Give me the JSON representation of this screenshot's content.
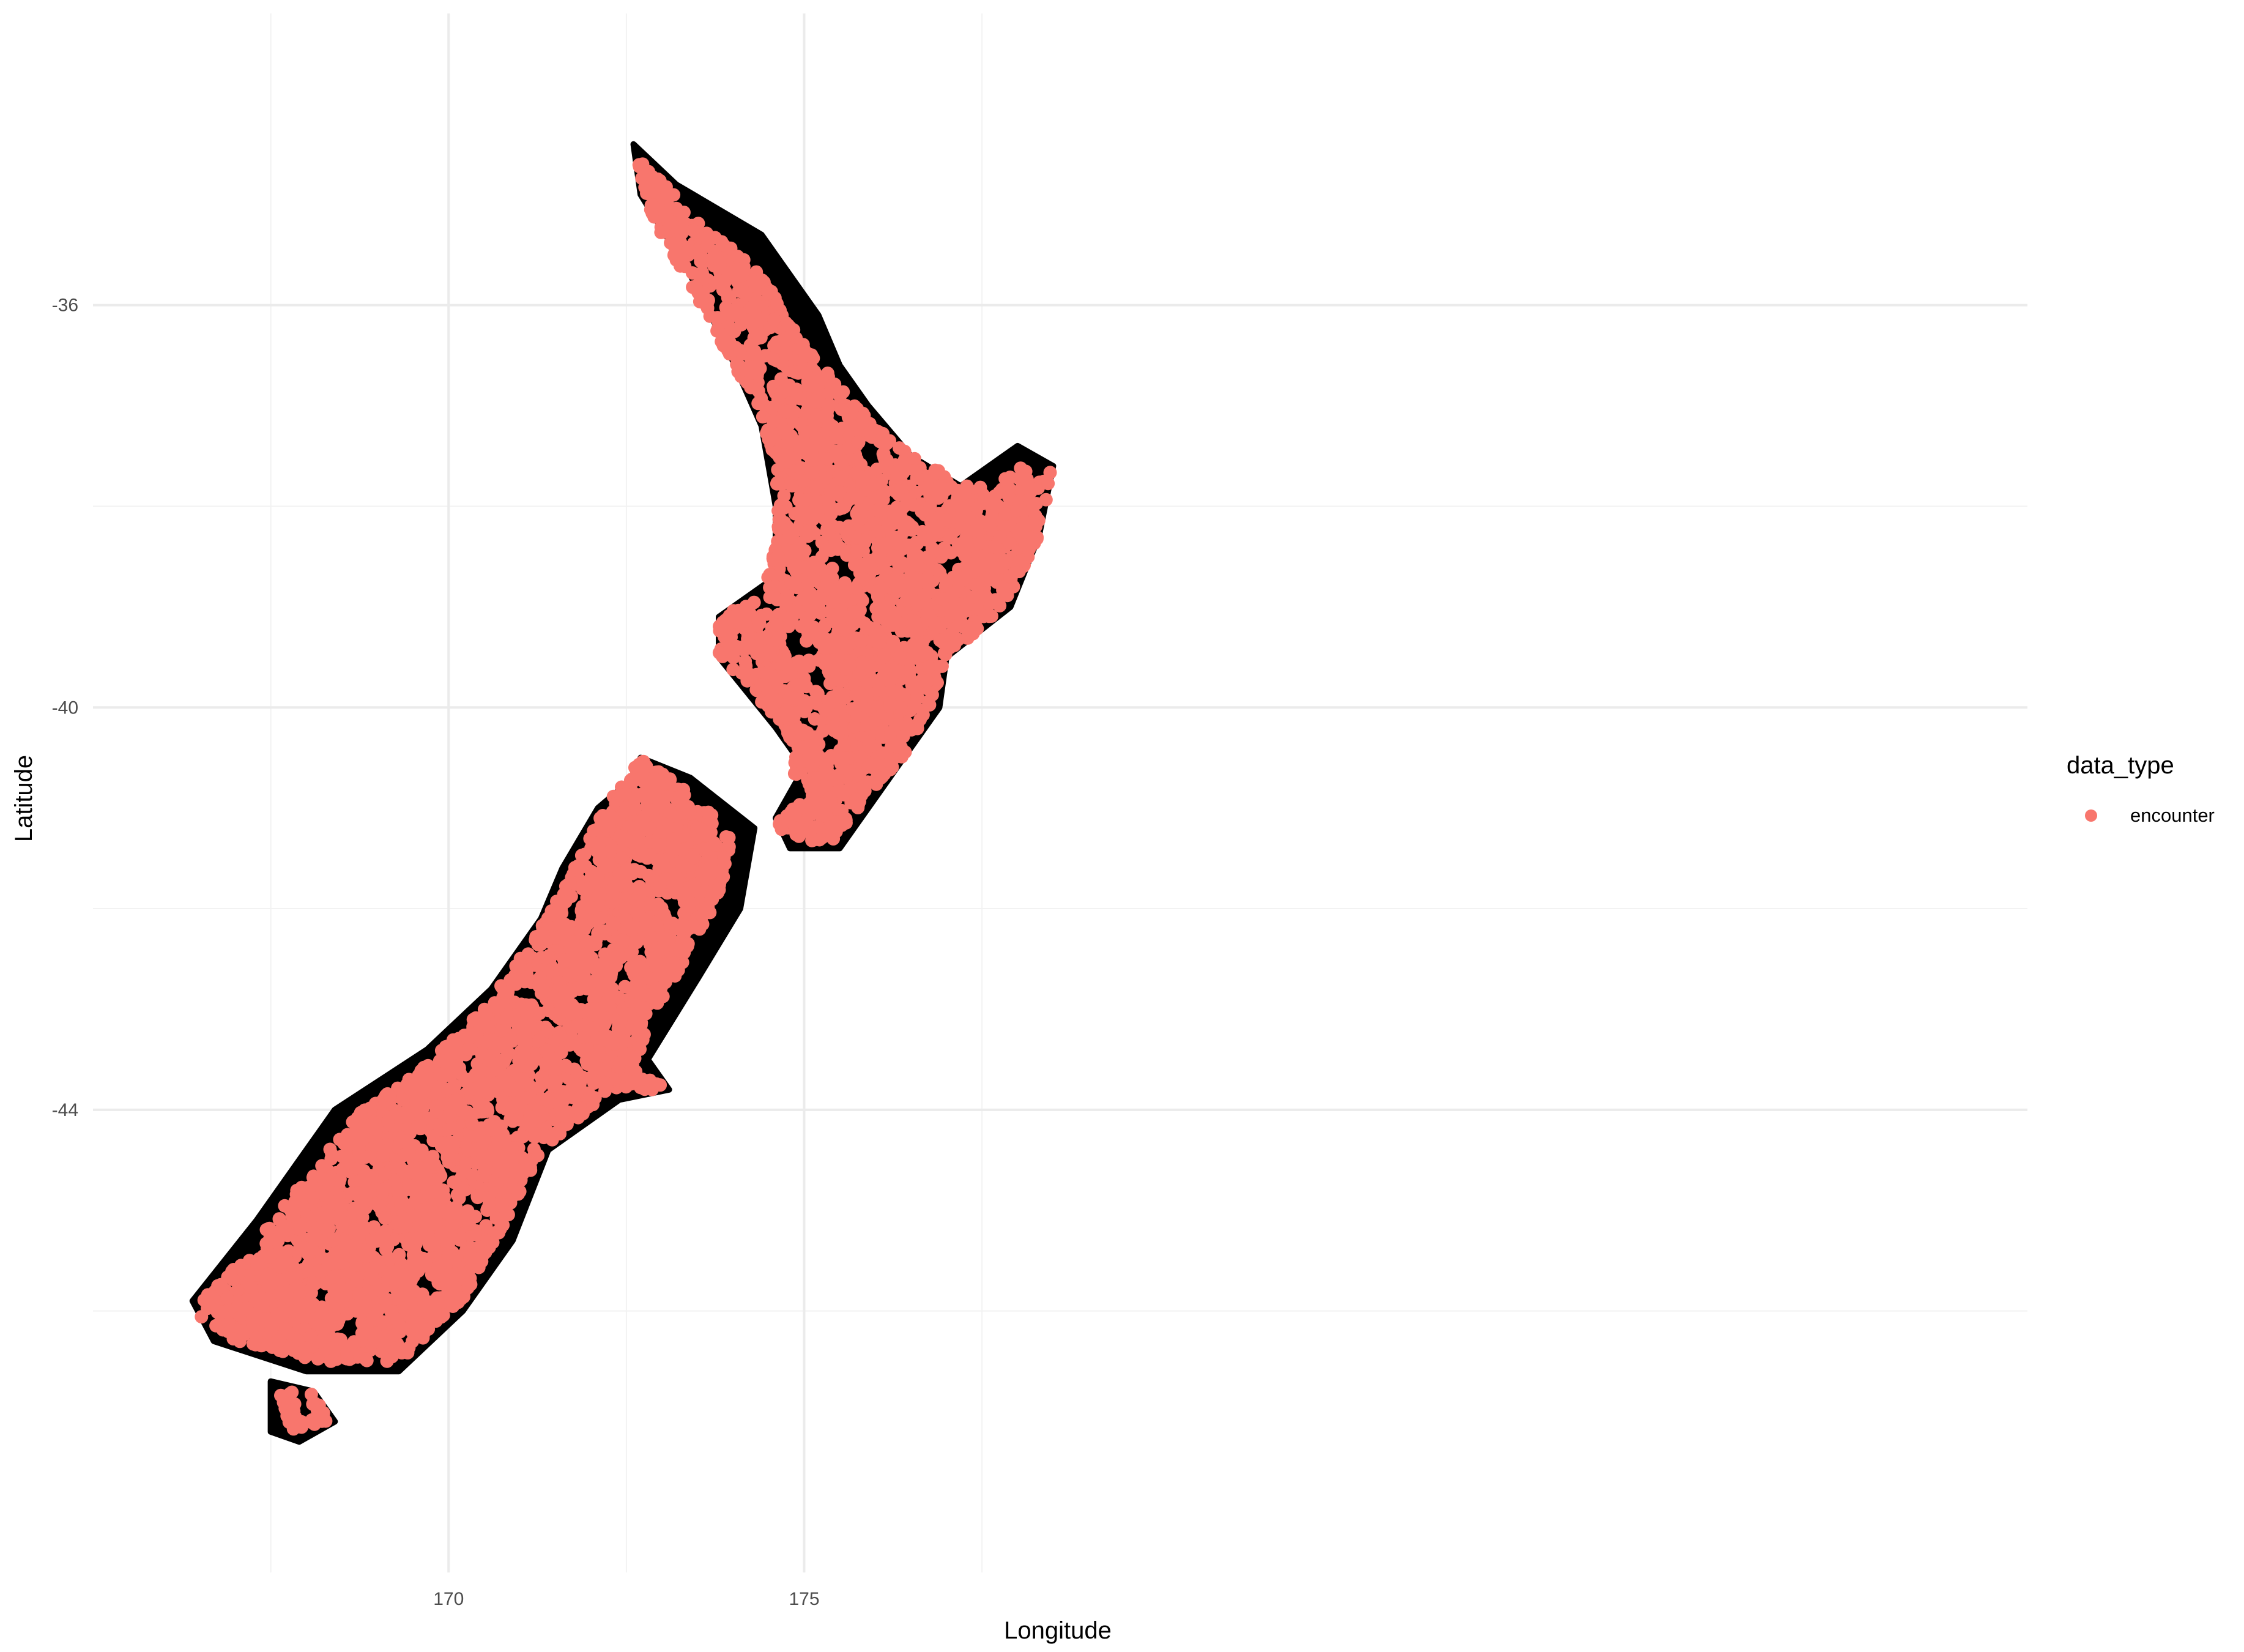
{
  "chart_data": {
    "type": "scatter",
    "title": "",
    "xlabel": "Longitude",
    "ylabel": "Latitude",
    "xlim": [
      165.0,
      192.2
    ],
    "ylim": [
      -48.6,
      -33.1
    ],
    "x_ticks": [
      170,
      175
    ],
    "y_ticks": [
      -36,
      -40,
      -44
    ],
    "x_tick_labels": [
      "170",
      "175"
    ],
    "y_tick_labels": [
      "-36",
      "-40",
      "-44"
    ],
    "x_minor_gridlines": [
      167.5,
      172.5,
      177.5
    ],
    "y_minor_gridlines": [
      -38,
      -42,
      -46
    ],
    "grid": true,
    "theme": "minimal",
    "legend": {
      "title": "data_type",
      "placement": "right",
      "entries": [
        {
          "name": "encounter",
          "color": "#F8766D"
        }
      ]
    },
    "background_layer": {
      "color": "#000000",
      "regions": {
        "north_island": [
          [
            172.6,
            -34.4
          ],
          [
            173.2,
            -34.8
          ],
          [
            174.4,
            -35.3
          ],
          [
            175.2,
            -36.1
          ],
          [
            175.5,
            -36.6
          ],
          [
            175.9,
            -37.0
          ],
          [
            176.5,
            -37.5
          ],
          [
            177.2,
            -37.8
          ],
          [
            178.0,
            -37.4
          ],
          [
            178.5,
            -37.6
          ],
          [
            178.3,
            -38.3
          ],
          [
            177.9,
            -39.0
          ],
          [
            177.0,
            -39.5
          ],
          [
            176.9,
            -40.0
          ],
          [
            176.2,
            -40.7
          ],
          [
            175.5,
            -41.4
          ],
          [
            174.8,
            -41.4
          ],
          [
            174.6,
            -41.1
          ],
          [
            175.0,
            -40.6
          ],
          [
            174.6,
            -40.2
          ],
          [
            173.8,
            -39.5
          ],
          [
            173.8,
            -39.1
          ],
          [
            174.6,
            -38.7
          ],
          [
            174.6,
            -38.0
          ],
          [
            174.4,
            -37.2
          ],
          [
            173.9,
            -36.4
          ],
          [
            173.4,
            -35.7
          ],
          [
            172.7,
            -34.9
          ]
        ],
        "south_island": [
          [
            172.7,
            -40.5
          ],
          [
            173.4,
            -40.7
          ],
          [
            174.3,
            -41.2
          ],
          [
            174.1,
            -42.0
          ],
          [
            173.5,
            -42.7
          ],
          [
            172.8,
            -43.5
          ],
          [
            173.1,
            -43.8
          ],
          [
            172.4,
            -43.9
          ],
          [
            171.4,
            -44.4
          ],
          [
            170.9,
            -45.3
          ],
          [
            170.2,
            -46.0
          ],
          [
            169.3,
            -46.6
          ],
          [
            168.0,
            -46.6
          ],
          [
            166.7,
            -46.3
          ],
          [
            166.4,
            -45.9
          ],
          [
            167.3,
            -45.1
          ],
          [
            168.4,
            -44.0
          ],
          [
            169.7,
            -43.4
          ],
          [
            170.6,
            -42.8
          ],
          [
            171.3,
            -42.1
          ],
          [
            171.6,
            -41.6
          ],
          [
            172.1,
            -41.0
          ],
          [
            172.6,
            -40.7
          ]
        ],
        "stewart_island": [
          [
            167.5,
            -46.7
          ],
          [
            168.1,
            -46.8
          ],
          [
            168.4,
            -47.1
          ],
          [
            167.9,
            -47.3
          ],
          [
            167.5,
            -47.2
          ]
        ]
      }
    },
    "series": [
      {
        "name": "encounter",
        "color": "#F8766D",
        "marker": "circle",
        "regions": {
          "north_island": [
            [
              172.6,
              -34.5
            ],
            [
              173.6,
              -35.2
            ],
            [
              174.4,
              -35.7
            ],
            [
              175.0,
              -36.4
            ],
            [
              175.6,
              -36.9
            ],
            [
              176.3,
              -37.4
            ],
            [
              177.3,
              -37.8
            ],
            [
              178.1,
              -37.6
            ],
            [
              178.5,
              -37.6
            ],
            [
              178.3,
              -38.3
            ],
            [
              177.8,
              -39.0
            ],
            [
              177.0,
              -39.5
            ],
            [
              176.6,
              -40.3
            ],
            [
              176.0,
              -40.8
            ],
            [
              175.3,
              -41.4
            ],
            [
              174.6,
              -41.2
            ],
            [
              174.8,
              -40.9
            ],
            [
              174.9,
              -40.4
            ],
            [
              174.6,
              -40.1
            ],
            [
              173.8,
              -39.5
            ],
            [
              173.8,
              -39.1
            ],
            [
              174.4,
              -38.9
            ],
            [
              174.6,
              -38.4
            ],
            [
              174.6,
              -37.6
            ],
            [
              174.4,
              -37.1
            ],
            [
              173.7,
              -36.2
            ],
            [
              172.9,
              -35.2
            ]
          ],
          "south_island": [
            [
              172.7,
              -40.5
            ],
            [
              173.3,
              -40.8
            ],
            [
              174.0,
              -41.2
            ],
            [
              173.8,
              -41.9
            ],
            [
              173.0,
              -42.9
            ],
            [
              172.6,
              -43.6
            ],
            [
              173.1,
              -43.8
            ],
            [
              172.3,
              -43.8
            ],
            [
              171.3,
              -44.4
            ],
            [
              170.8,
              -45.1
            ],
            [
              170.2,
              -45.9
            ],
            [
              169.3,
              -46.5
            ],
            [
              168.2,
              -46.5
            ],
            [
              167.0,
              -46.3
            ],
            [
              166.4,
              -46.0
            ],
            [
              167.2,
              -45.4
            ],
            [
              168.3,
              -44.4
            ],
            [
              168.8,
              -44.0
            ],
            [
              169.6,
              -43.6
            ],
            [
              170.5,
              -43.0
            ],
            [
              171.2,
              -42.3
            ],
            [
              171.7,
              -41.7
            ],
            [
              172.2,
              -41.0
            ]
          ],
          "stewart_island": [
            [
              167.6,
              -46.8
            ],
            [
              168.1,
              -46.8
            ],
            [
              168.3,
              -47.1
            ],
            [
              167.8,
              -47.2
            ]
          ]
        }
      }
    ]
  }
}
